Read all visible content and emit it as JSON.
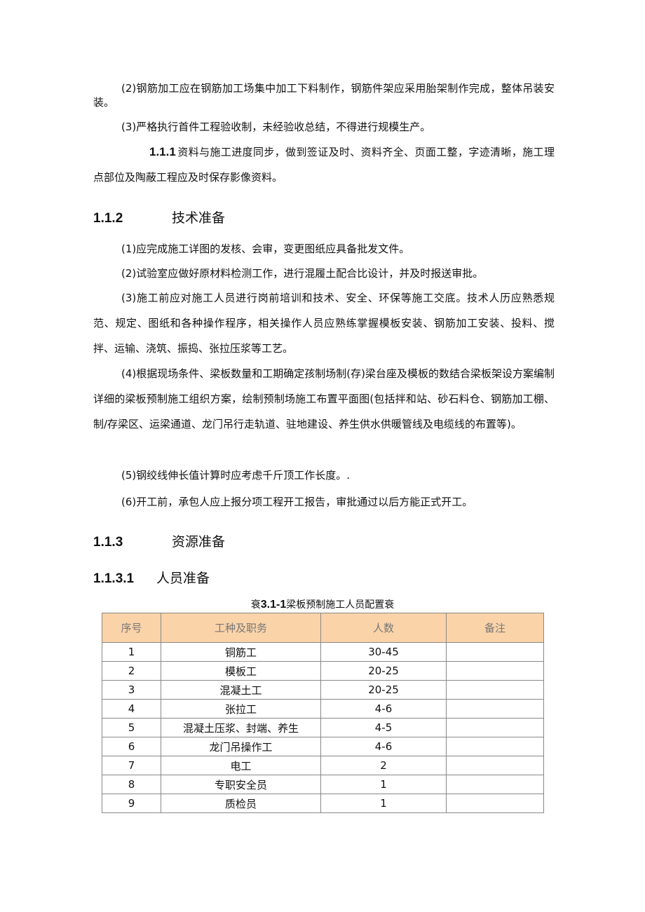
{
  "paragraphs_top": [
    "(2)钢筋加工应在钢筋加工场集中加工下料制作，钢筋件架应采用胎架制作完成，整体吊装安装。",
    "(3)严格执行首件工程验收制，未经验收总结，不得进行规模生产。"
  ],
  "section_111": {
    "number": "1.1.1",
    "text": "资料与施工进度同步，做到签证及时、资料齐全、页面工整，字迹清晰，施工理点部位及陶蔽工程应及时保存影像资料。"
  },
  "section_112": {
    "number": "1.1.2",
    "title": "技术准备",
    "items": [
      "(1)应完成施工详图的发核、会审，变更图纸应具备批发文件。",
      "(2)试验室应做好原材料检测工作，进行混履土配合比设计，并及时报送审批。",
      "(3)施工前应对施工人员进行岗前培训和技术、安全、环保等施工交底。技术人历应熟悉规范、规定、图纸和各种操作程序，相关操作人员应熟练掌握模板安装、钢筋加工安装、投料、搅拌、运输、浇筑、振捣、张拉压浆等工艺。",
      "(4)根据现场条件、梁板数量和工期确定孩制场制(存)梁台座及模板的数结合梁板架设方案编制详细的梁板预制施工组织方案，绘制预制场施工布置平面图(包括拌和站、砂石料仓、钢筋加工棚、制/存梁区、运梁通道、龙门吊行走轨道、驻地建设、养生供水供暖管线及电缆线的布置等)。",
      "(5)钢绞线伸长值计算时应考虑千斤顶工作长度。.",
      "(6)开工前，承包人应上报分项工程开工报告，审批通过以后方能正式开工。"
    ]
  },
  "section_113": {
    "number": "1.1.3",
    "title": "资源准备"
  },
  "section_1131": {
    "number": "1.1.3.1",
    "title": "人员准备"
  },
  "table": {
    "caption_prefix": "衰",
    "caption_number": "3.1-1",
    "caption_text": "梁板预制施工人员配置衰",
    "header_color": "#fbd3a8",
    "headers": [
      "序号",
      "工种及职务",
      "人数",
      "备注"
    ],
    "rows": [
      [
        "1",
        "铜筋工",
        "30-45",
        ""
      ],
      [
        "2",
        "模板工",
        "20-25",
        ""
      ],
      [
        "3",
        "混凝土工",
        "20-25",
        ""
      ],
      [
        "4",
        "张拉工",
        "4-6",
        ""
      ],
      [
        "5",
        "混凝土压浆、封端、养生",
        "4-5",
        ""
      ],
      [
        "6",
        "龙门吊操作工",
        "4-6",
        ""
      ],
      [
        "7",
        "电工",
        "2",
        ""
      ],
      [
        "8",
        "专职安全员",
        "1",
        ""
      ],
      [
        "9",
        "质检员",
        "1",
        ""
      ]
    ]
  }
}
